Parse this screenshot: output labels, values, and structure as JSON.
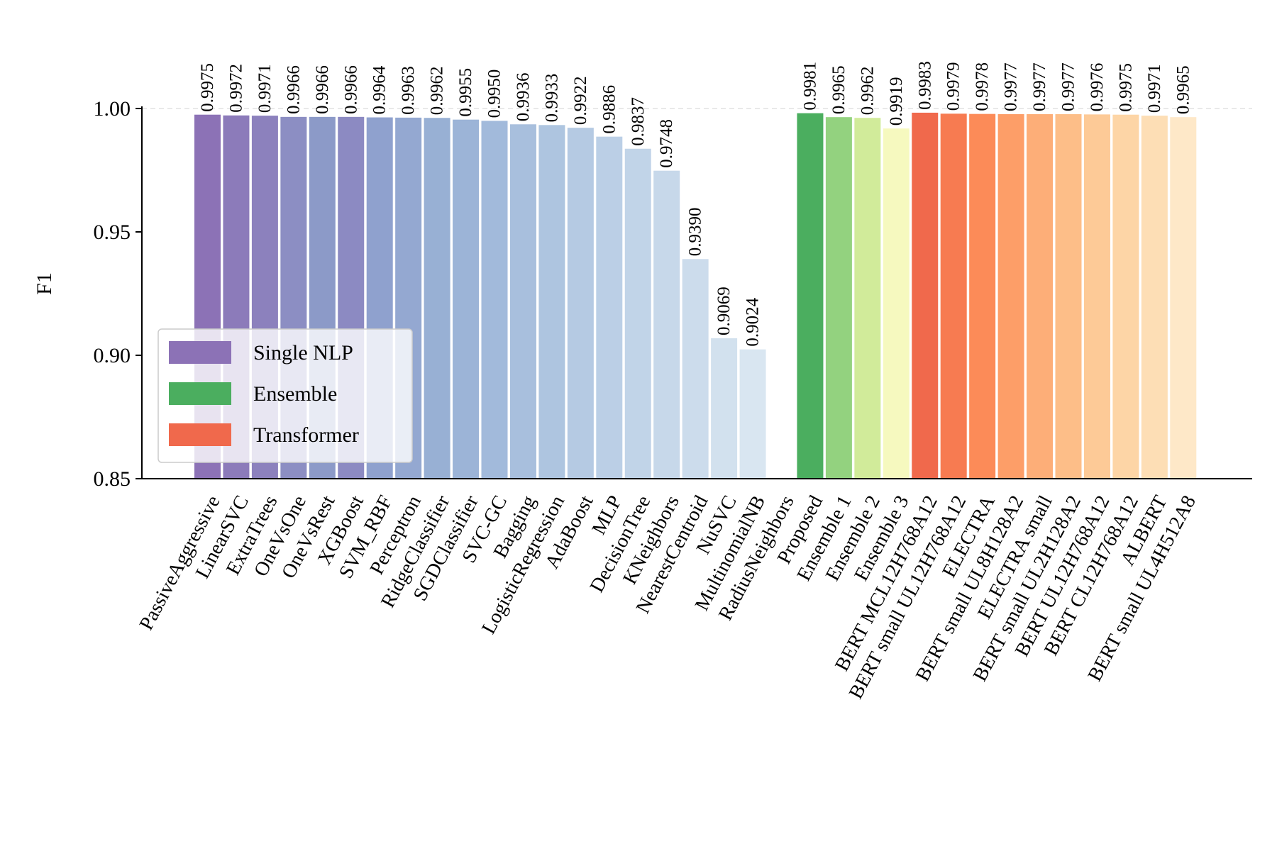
{
  "chart_data": {
    "type": "bar",
    "title": "",
    "xlabel": "",
    "ylabel": "F1",
    "ylim": [
      0.85,
      1.0
    ],
    "yticks": [
      "0.85",
      "0.90",
      "0.95",
      "1.00"
    ],
    "ytick_values": [
      0.85,
      0.9,
      0.95,
      1.0
    ],
    "grid": "dashed horizontal line at 1.00",
    "legend_position": "lower-left",
    "groups": [
      {
        "name": "Single NLP",
        "legend_color": "#8c72b6",
        "bars": [
          {
            "category": "PassiveAggressive",
            "value": 0.9975,
            "label": "0.9975",
            "color": "#8c72b6"
          },
          {
            "category": "LinearSVC",
            "value": 0.9972,
            "label": "0.9972",
            "color": "#8c7bba"
          },
          {
            "category": "ExtraTrees",
            "value": 0.9971,
            "label": "0.9971",
            "color": "#8c81bd"
          },
          {
            "category": "OneVsOne",
            "value": 0.9966,
            "label": "0.9966",
            "color": "#8c8ec3"
          },
          {
            "category": "OneVsRest",
            "value": 0.9966,
            "label": "0.9966",
            "color": "#8c9ac8"
          },
          {
            "category": "XGBoost",
            "value": 0.9966,
            "label": "0.9966",
            "color": "#8c8ac2"
          },
          {
            "category": "SVM_RBF",
            "value": 0.9964,
            "label": "0.9964",
            "color": "#8fa1ce"
          },
          {
            "category": "Perceptron",
            "value": 0.9963,
            "label": "0.9963",
            "color": "#94a8d1"
          },
          {
            "category": "RidgeClassifier",
            "value": 0.9962,
            "label": "0.9962",
            "color": "#98b0d4"
          },
          {
            "category": "SGDClassifier",
            "value": 0.9955,
            "label": "0.9955",
            "color": "#9cb4d7"
          },
          {
            "category": "SVC-GC",
            "value": 0.995,
            "label": "0.9950",
            "color": "#a2badb"
          },
          {
            "category": "Bagging",
            "value": 0.9936,
            "label": "0.9936",
            "color": "#a8bfdd"
          },
          {
            "category": "LogisticRegression",
            "value": 0.9933,
            "label": "0.9933",
            "color": "#aec5e0"
          },
          {
            "category": "AdaBoost",
            "value": 0.9922,
            "label": "0.9922",
            "color": "#b5cae3"
          },
          {
            "category": "MLP",
            "value": 0.9886,
            "label": "0.9886",
            "color": "#bbcfe6"
          },
          {
            "category": "DecisionTree",
            "value": 0.9837,
            "label": "0.9837",
            "color": "#c1d4e8"
          },
          {
            "category": "KNeighbors",
            "value": 0.9748,
            "label": "0.9748",
            "color": "#c7d8ea"
          },
          {
            "category": "NearestCentroid",
            "value": 0.939,
            "label": "0.9390",
            "color": "#ccdcec"
          },
          {
            "category": "NuSVC",
            "value": 0.9069,
            "label": "0.9069",
            "color": "#d2e1ee"
          },
          {
            "category": "MultinomialNB",
            "value": 0.9024,
            "label": "0.9024",
            "color": "#d9e6f1"
          },
          {
            "category": "RadiusNeighbors",
            "value": null,
            "label": "",
            "color": "#dfeaf3"
          }
        ]
      },
      {
        "name": "Ensemble",
        "legend_color": "#4bae5f",
        "bars": [
          {
            "category": "Proposed",
            "value": 0.9981,
            "label": "0.9981",
            "color": "#4bae5f"
          },
          {
            "category": "Ensemble 1",
            "value": 0.9965,
            "label": "0.9965",
            "color": "#93d27f"
          },
          {
            "category": "Ensemble 2",
            "value": 0.9962,
            "label": "0.9962",
            "color": "#d1eb9a"
          },
          {
            "category": "Ensemble 3",
            "value": 0.9919,
            "label": "0.9919",
            "color": "#f6f9bf"
          }
        ]
      },
      {
        "name": "Transformer",
        "legend_color": "#f0694c",
        "bars": [
          {
            "category": "BERT MCL12H768A12",
            "value": 0.9983,
            "label": "0.9983",
            "color": "#f0694c"
          },
          {
            "category": "BERT small UL12H768A12",
            "value": 0.9979,
            "label": "0.9979",
            "color": "#f77b51"
          },
          {
            "category": "ELECTRA",
            "value": 0.9978,
            "label": "0.9978",
            "color": "#fc8b58"
          },
          {
            "category": "BERT small UL8H128A2",
            "value": 0.9977,
            "label": "0.9977",
            "color": "#fd9e68"
          },
          {
            "category": "ELECTRA small",
            "value": 0.9977,
            "label": "0.9977",
            "color": "#fdae78"
          },
          {
            "category": "BERT small UL2H128A2",
            "value": 0.9977,
            "label": "0.9977",
            "color": "#fdbe88"
          },
          {
            "category": "BERT UL12H768A12",
            "value": 0.9976,
            "label": "0.9976",
            "color": "#fdca97"
          },
          {
            "category": "BERT CL12H768A12",
            "value": 0.9975,
            "label": "0.9975",
            "color": "#fdd5a6"
          },
          {
            "category": "ALBERT",
            "value": 0.9971,
            "label": "0.9971",
            "color": "#fddeb5"
          },
          {
            "category": "BERT small UL4H512A8",
            "value": 0.9965,
            "label": "0.9965",
            "color": "#fee8c8"
          }
        ]
      }
    ]
  }
}
